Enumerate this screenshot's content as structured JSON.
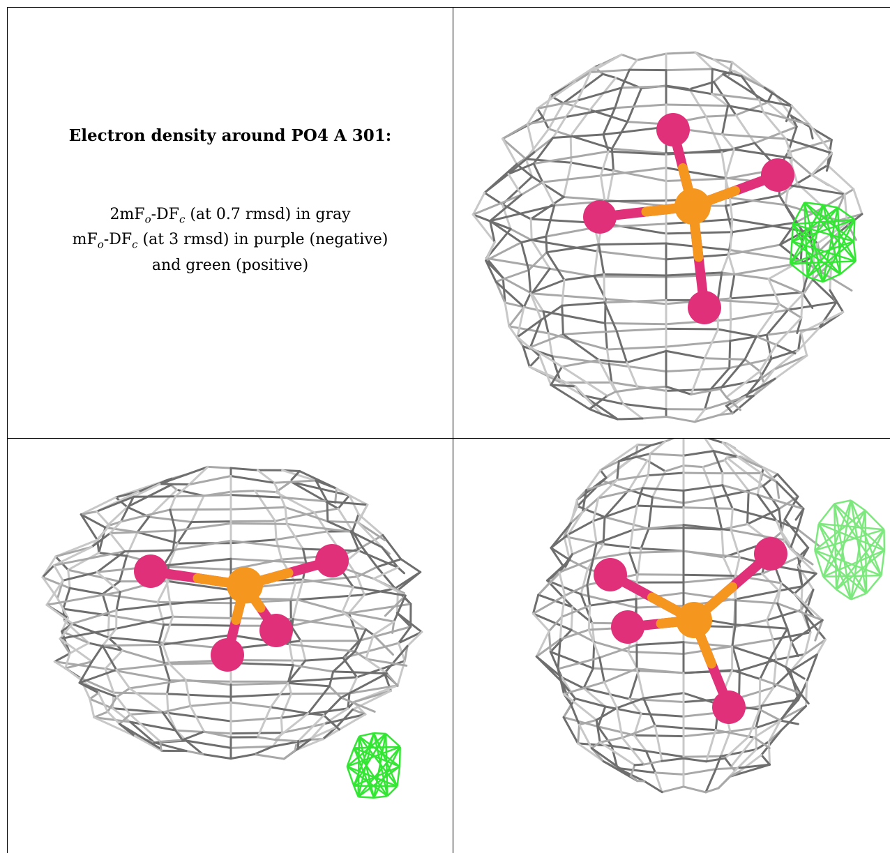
{
  "caption": {
    "title": "Electron density around PO4 A 301:",
    "line1_prefix": "2mF",
    "line1_sub1": "o",
    "line1_mid": "-DF",
    "line1_sub2": "c",
    "line1_suffix": " (at 0.7 rmsd) in gray",
    "line2_prefix": "mF",
    "line2_sub1": "o",
    "line2_mid": "-DF",
    "line2_sub2": "c",
    "line2_suffix": " (at 3 rmsd) in purple (negative)",
    "line3": "and green (positive)"
  },
  "colors": {
    "mesh_gray": "#a8a8a8",
    "mesh_dark": "#6e6e6e",
    "positive_green": "#33e633",
    "oxygen": "#e0307a",
    "phosphorus": "#f5961e"
  },
  "panels": [
    "view-1",
    "view-2",
    "view-3"
  ]
}
